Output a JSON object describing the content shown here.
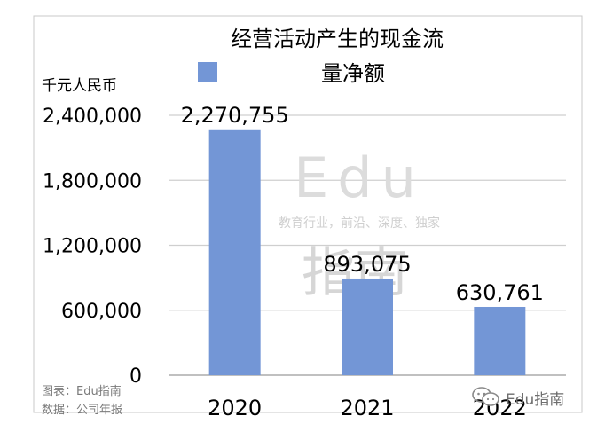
{
  "chart_data": {
    "type": "bar",
    "title_line1": "经营活动产生的现金流",
    "legend_label": "量净额",
    "ylabel": "千元人民币",
    "categories": [
      "2020",
      "2021",
      "2022"
    ],
    "values": [
      2270755,
      893075,
      630761
    ],
    "value_labels": [
      "2,270,755",
      "893,075",
      "630,761"
    ],
    "yticks": [
      0,
      600000,
      1200000,
      1800000,
      2400000
    ],
    "ytick_labels": [
      "0",
      "600,000",
      "1,200,000",
      "1,800,000",
      "2,400,000"
    ],
    "ylim": [
      0,
      2400000
    ],
    "grid": true,
    "bar_color": "#7396d6",
    "watermark_text": "Edu",
    "watermark_sub": "教育行业，前沿、深度、独家",
    "watermark_logo_text": "指南"
  },
  "footer": {
    "credit_chart": "图表：Edu指南",
    "credit_data": "数据：公司年报"
  },
  "brand_watermark": "Edu指南",
  "icons": {
    "brand": "wechat-bubble-icon"
  }
}
